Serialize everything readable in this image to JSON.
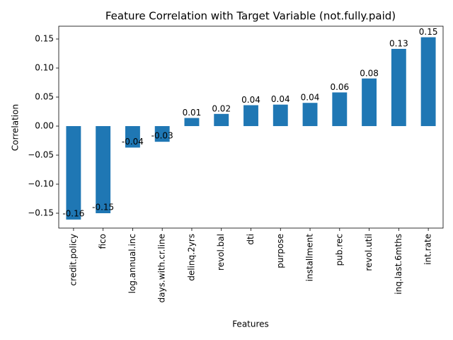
{
  "chart_data": {
    "type": "bar",
    "title": "Feature Correlation with Target Variable (not.fully.paid)",
    "x_label": "Features",
    "y_label": "Correlation",
    "categories": [
      "credit.policy",
      "fico",
      "log.annual.inc",
      "days.with.cr.line",
      "delinq.2yrs",
      "revol.bal",
      "dti",
      "purpose",
      "installment",
      "pub.rec",
      "revol.util",
      "inq.last.6mths",
      "int.rate"
    ],
    "values": [
      -0.161,
      -0.15,
      -0.037,
      -0.027,
      0.014,
      0.021,
      0.036,
      0.037,
      0.04,
      0.058,
      0.082,
      0.133,
      0.153
    ],
    "value_labels": [
      "-0.16",
      "-0.15",
      "-0.04",
      "-0.03",
      "0.01",
      "0.02",
      "0.04",
      "0.04",
      "0.04",
      "0.06",
      "0.08",
      "0.13",
      "0.15"
    ],
    "color": "#1f77b4",
    "ylim": [
      -0.1756,
      0.172
    ],
    "yticks": [
      {
        "value": -0.15,
        "label": "−0.15"
      },
      {
        "value": -0.1,
        "label": "−0.10"
      },
      {
        "value": -0.05,
        "label": "−0.05"
      },
      {
        "value": 0,
        "label": "0.00"
      },
      {
        "value": 0.05,
        "label": "0.05"
      },
      {
        "value": 0.1,
        "label": "0.10"
      },
      {
        "value": 0.15,
        "label": "0.15"
      }
    ],
    "grid": false
  }
}
